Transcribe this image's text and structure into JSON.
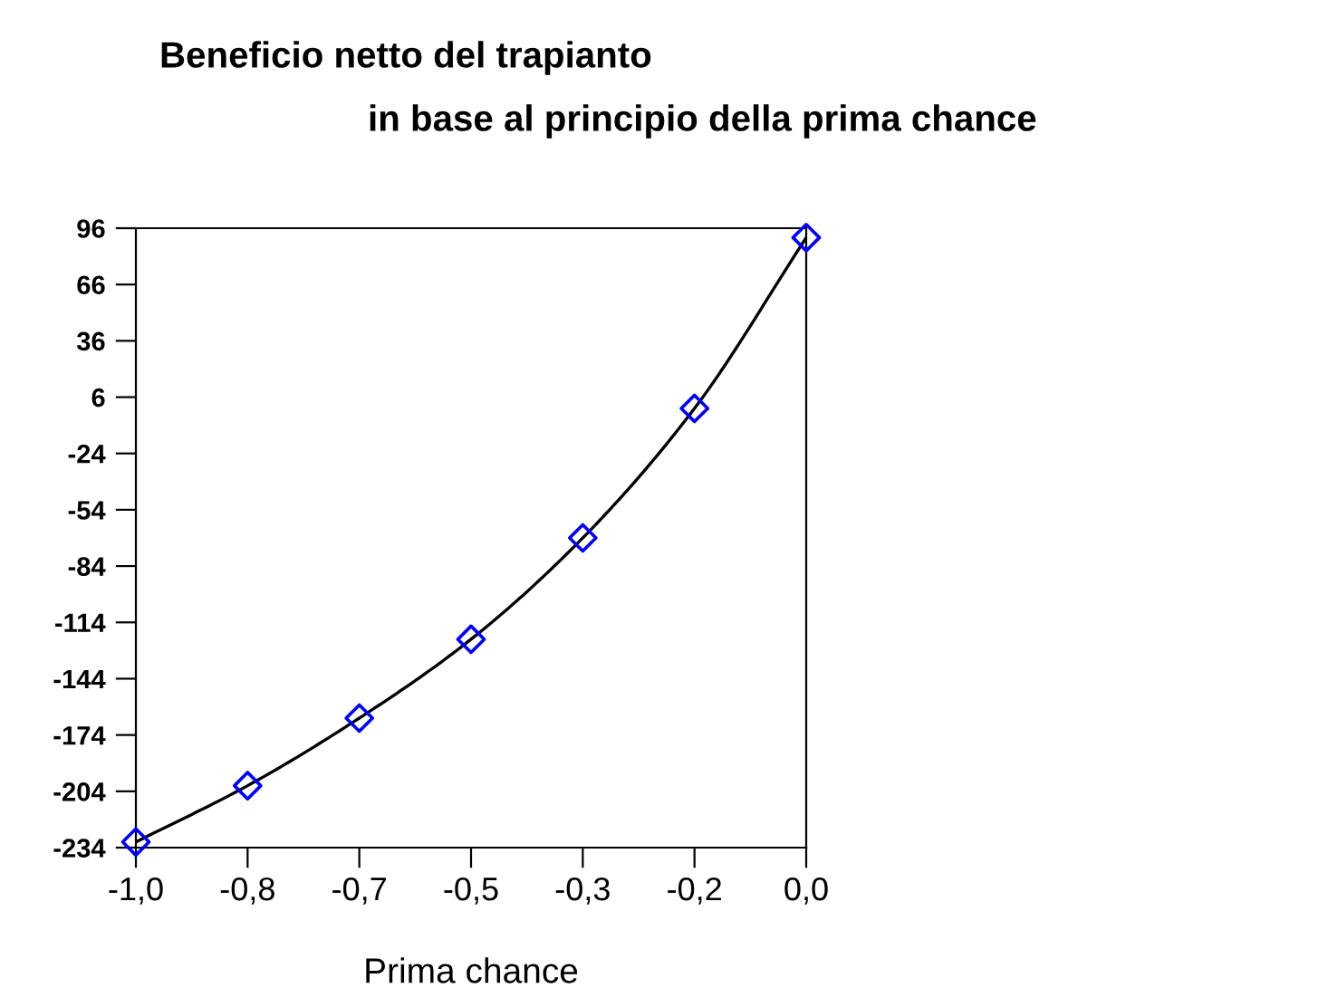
{
  "chart_data": {
    "type": "line",
    "title": "Beneficio netto del trapianto",
    "subtitle": "in base al principio della prima chance",
    "xlabel": "Prima chance",
    "categories": [
      "-1,0",
      "-0,8",
      "-0,7",
      "-0,5",
      "-0,3",
      "-0,2",
      "0,0"
    ],
    "series": [
      {
        "color": "#0000ff",
        "values": [
          -231,
          -201,
          -165,
          -123,
          -69,
          0,
          91
        ]
      }
    ],
    "ylim": [
      -234,
      96
    ],
    "yticks": [
      -234,
      -204,
      -174,
      -144,
      -114,
      -84,
      -54,
      -24,
      6,
      36,
      66,
      96
    ],
    "marker": "diamond",
    "line_style": "solid",
    "grid": false,
    "legend": false
  }
}
